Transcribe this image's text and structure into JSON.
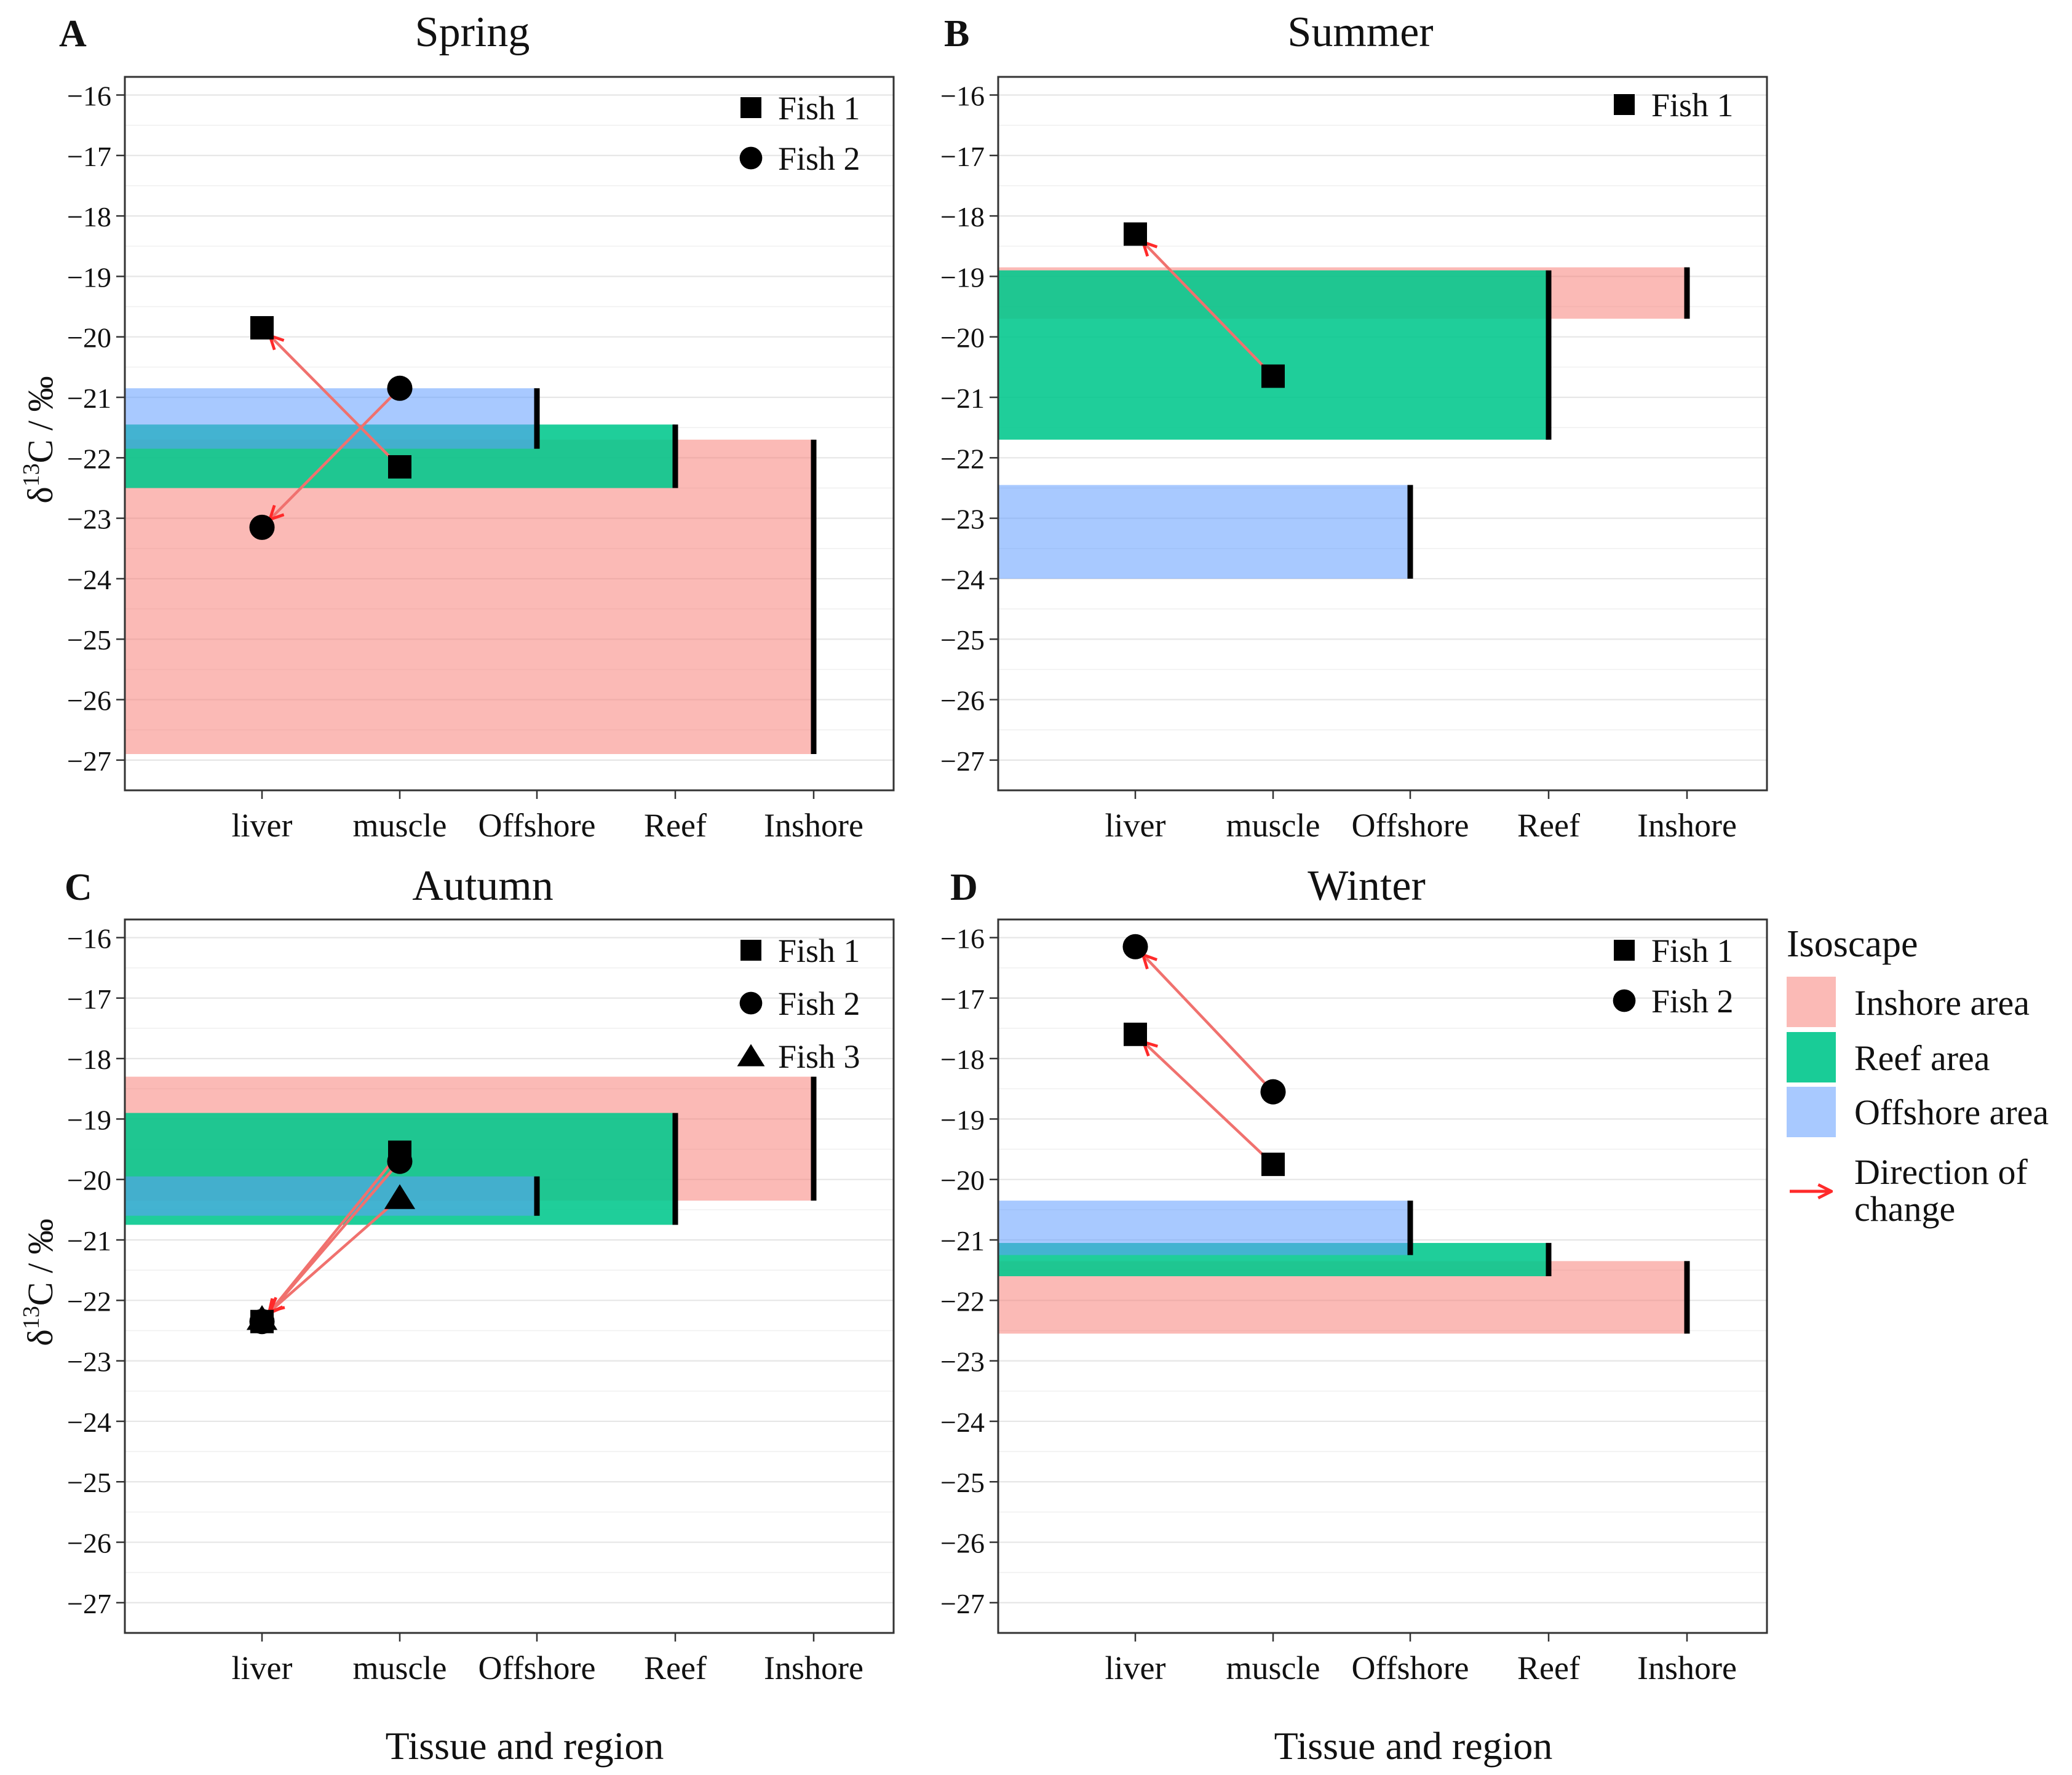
{
  "x_axis_title": "Tissue and region",
  "y_axis_title_prefix": "δ",
  "y_axis_title_sup": "13",
  "y_axis_title_suffix": "C / ‰",
  "categories": [
    "liver",
    "muscle",
    "Offshore",
    "Reef",
    "Inshore"
  ],
  "y_ticks": [
    "−16",
    "−17",
    "−18",
    "−19",
    "−20",
    "−21",
    "−22",
    "−23",
    "−24",
    "−25",
    "−26",
    "−27"
  ],
  "legend": {
    "title": "Isoscape",
    "items": [
      {
        "label": "Inshore area",
        "color": "#f8766d"
      },
      {
        "label": "Reef area",
        "color": "#00c78c"
      },
      {
        "label": "Offshore area",
        "color": "#619cff"
      }
    ],
    "arrow_label_line1": "Direction of",
    "arrow_label_line2": "change",
    "arrow_color": "#ff2a2a"
  },
  "chart_data": [
    {
      "letter": "A",
      "title": "Spring",
      "type": "scatter",
      "xlabel": "Tissue and region",
      "ylabel": "δ13C / ‰",
      "ylim": [
        -27.5,
        -15.7
      ],
      "regions": [
        {
          "name": "Inshore",
          "min": -26.9,
          "max": -21.7
        },
        {
          "name": "Reef",
          "min": -22.5,
          "max": -21.45
        },
        {
          "name": "Offshore",
          "min": -21.85,
          "max": -20.85
        }
      ],
      "fish": [
        {
          "label": "Fish 1",
          "shape": "square",
          "liver": -19.85,
          "muscle": -22.15
        },
        {
          "label": "Fish 2",
          "shape": "circle",
          "liver": -23.15,
          "muscle": -20.85
        }
      ]
    },
    {
      "letter": "B",
      "title": "Summer",
      "type": "scatter",
      "xlabel": "Tissue and region",
      "ylabel": "δ13C / ‰",
      "ylim": [
        -27.5,
        -15.7
      ],
      "regions": [
        {
          "name": "Inshore",
          "min": -19.7,
          "max": -18.85
        },
        {
          "name": "Reef",
          "min": -21.7,
          "max": -18.9
        },
        {
          "name": "Offshore",
          "min": -24.0,
          "max": -22.45
        }
      ],
      "fish": [
        {
          "label": "Fish 1",
          "shape": "square",
          "liver": -18.3,
          "muscle": -20.65
        }
      ]
    },
    {
      "letter": "C",
      "title": "Autumn",
      "type": "scatter",
      "xlabel": "Tissue and region",
      "ylabel": "δ13C / ‰",
      "ylim": [
        -27.5,
        -15.7
      ],
      "regions": [
        {
          "name": "Inshore",
          "min": -20.35,
          "max": -18.3
        },
        {
          "name": "Reef",
          "min": -20.75,
          "max": -18.9
        },
        {
          "name": "Offshore",
          "min": -20.6,
          "max": -19.95
        }
      ],
      "fish": [
        {
          "label": "Fish 1",
          "shape": "square",
          "liver": -22.35,
          "muscle": -19.55
        },
        {
          "label": "Fish 2",
          "shape": "circle",
          "liver": -22.35,
          "muscle": -19.7
        },
        {
          "label": "Fish 3",
          "shape": "triangle",
          "liver": -22.3,
          "muscle": -20.3
        }
      ]
    },
    {
      "letter": "D",
      "title": "Winter",
      "type": "scatter",
      "xlabel": "Tissue and region",
      "ylabel": "δ13C / ‰",
      "ylim": [
        -27.5,
        -15.7
      ],
      "regions": [
        {
          "name": "Inshore",
          "min": -22.55,
          "max": -21.35
        },
        {
          "name": "Reef",
          "min": -21.6,
          "max": -21.05
        },
        {
          "name": "Offshore",
          "min": -21.25,
          "max": -20.35
        }
      ],
      "fish": [
        {
          "label": "Fish 1",
          "shape": "square",
          "liver": -17.6,
          "muscle": -19.75
        },
        {
          "label": "Fish 2",
          "shape": "circle",
          "liver": -16.15,
          "muscle": -18.55
        }
      ]
    }
  ]
}
